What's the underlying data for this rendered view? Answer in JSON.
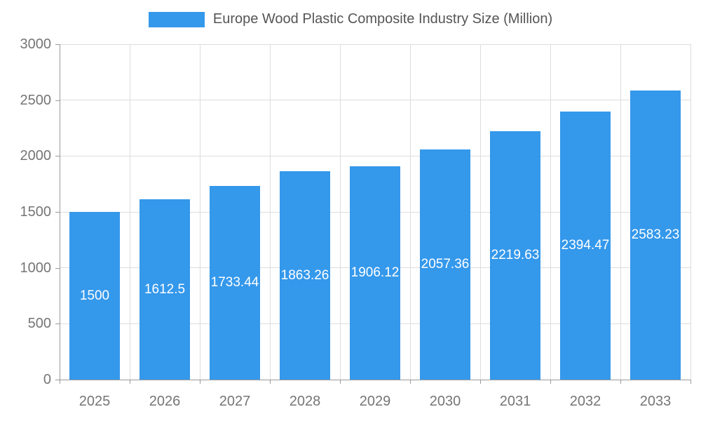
{
  "legend": {
    "label": "Europe Wood Plastic Composite Industry Size (Million)"
  },
  "chart_data": {
    "type": "bar",
    "title": "Europe Wood Plastic Composite Industry Size (Million)",
    "categories": [
      "2025",
      "2026",
      "2027",
      "2028",
      "2029",
      "2030",
      "2031",
      "2032",
      "2033"
    ],
    "values": [
      1500,
      1612.5,
      1733.44,
      1863.26,
      1906.12,
      2057.36,
      2219.63,
      2394.47,
      2583.23
    ],
    "value_labels": [
      "1500",
      "1612.5",
      "1733.44",
      "1863.26",
      "1906.12",
      "2057.36",
      "2219.63",
      "2394.47",
      "2583.23"
    ],
    "xlabel": "",
    "ylabel": "",
    "ylim": [
      0,
      3000
    ],
    "yticks": [
      0,
      500,
      1000,
      1500,
      2000,
      2500,
      3000
    ],
    "grid": true,
    "legend_position": "top",
    "colors": {
      "bar": "#3498eb",
      "bar_label_text": "#ffffff",
      "axis_text": "#757575",
      "legend_text": "#555555",
      "gridline": "#dddddd",
      "axis_line": "#9a9a9a"
    }
  }
}
